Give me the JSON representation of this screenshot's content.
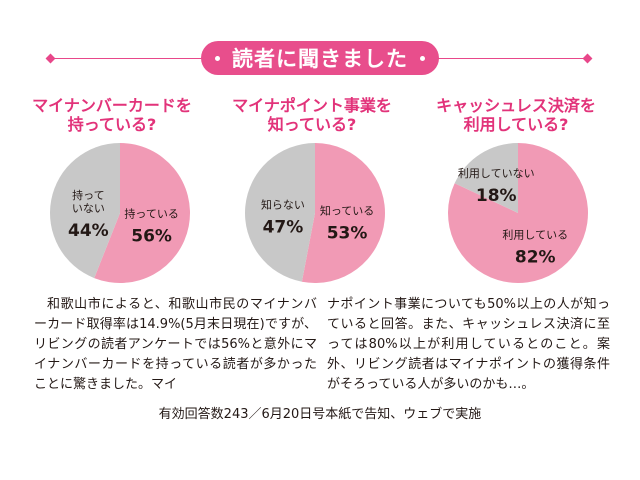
{
  "header": {
    "title": "読者に聞きました"
  },
  "colors": {
    "accent": "#e8478a",
    "question_text": "#e2337a",
    "slice_pink": "#f19ab5",
    "slice_gray": "#c8c8c8"
  },
  "chart_data": [
    {
      "type": "pie",
      "title": "マイナンバーカードを持っている?",
      "slices": [
        {
          "label": "持っている",
          "value": 56,
          "display": "56%",
          "color": "#f19ab5"
        },
        {
          "label": "持って いない",
          "value": 44,
          "display": "44%",
          "color": "#c8c8c8"
        }
      ]
    },
    {
      "type": "pie",
      "title": "マイナポイント事業を知っている?",
      "slices": [
        {
          "label": "知っている",
          "value": 53,
          "display": "53%",
          "color": "#f19ab5"
        },
        {
          "label": "知らない",
          "value": 47,
          "display": "47%",
          "color": "#c8c8c8"
        }
      ]
    },
    {
      "type": "pie",
      "title": "キャッシュレス決済を利用している?",
      "slices": [
        {
          "label": "利用している",
          "value": 82,
          "display": "82%",
          "color": "#f19ab5"
        },
        {
          "label": "利用していない",
          "value": 18,
          "display": "18%",
          "color": "#c8c8c8"
        }
      ]
    }
  ],
  "questions": [
    {
      "line1": "マイナンバーカードを",
      "line2": "持っている?"
    },
    {
      "line1": "マイナポイント事業を",
      "line2": "知っている?"
    },
    {
      "line1": "キャッシュレス決済を",
      "line2": "利用している?"
    }
  ],
  "article": {
    "col1": "和歌山市によると、和歌山市民のマイナンバーカード取得率は14.9%(5月末日現在)ですが、リビングの読者アンケートでは56%と意外にマイナンバーカードを持っている読者が多かったことに驚きました。マイ",
    "col2": "ナポイント事業についても50%以上の人が知っていると回答。また、キャッシュレス決済に至っては80%以上が利用しているとのこと。案外、リビング読者はマイナポイントの獲得条件がそろっている人が多いのかも…。"
  },
  "footer": {
    "note": "有効回答数243／6月20日号本紙で告知、ウェブで実施"
  }
}
